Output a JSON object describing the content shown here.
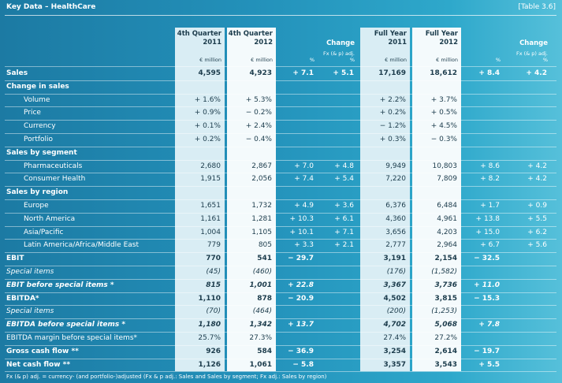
{
  "header": {
    "title": "Key Data – HealthCare",
    "table_ref": "[Table 3.6]"
  },
  "table": {
    "columns": [
      [
        "4th Quarter",
        "2011"
      ],
      [
        "4th Quarter",
        "2012"
      ],
      [
        "Change"
      ],
      [
        "Full Year",
        "2011"
      ],
      [
        "Full Year",
        "2012"
      ],
      [
        "Change"
      ]
    ],
    "units": [
      [
        "€ million"
      ],
      [
        "€ million"
      ],
      [
        "%"
      ],
      [
        "Fx (& p) adj.",
        "%"
      ],
      [
        "€ million"
      ],
      [
        "€ million"
      ],
      [
        "%"
      ],
      [
        "Fx (& p) adj.",
        "%"
      ]
    ],
    "rows": [
      {
        "label": "Sales",
        "cells": [
          "4,595",
          "4,923",
          "+ 7.1",
          "+ 5.1",
          "17,169",
          "18,612",
          "+ 8.4",
          "+ 4.2"
        ]
      },
      {
        "label": "Change in sales"
      },
      {
        "label": "Volume",
        "cells": [
          "+ 1.6%",
          "+ 5.3%",
          null,
          null,
          "+ 2.2%",
          "+ 3.7%",
          null,
          null
        ]
      },
      {
        "label": "Price",
        "cells": [
          "+ 0.9%",
          "− 0.2%",
          null,
          null,
          "+ 0.2%",
          "+ 0.5%",
          null,
          null
        ]
      },
      {
        "label": "Currency",
        "cells": [
          "+ 0.1%",
          "+ 2.4%",
          null,
          null,
          "− 1.2%",
          "+ 4.5%",
          null,
          null
        ]
      },
      {
        "label": "Portfolio",
        "cells": [
          "+ 0.2%",
          "− 0.4%",
          null,
          null,
          "+ 0.3%",
          "− 0.3%",
          null,
          null
        ]
      },
      {
        "label": "Sales by segment"
      },
      {
        "label": "Pharmaceuticals",
        "cells": [
          "2,680",
          "2,867",
          "+ 7.0",
          "+ 4.8",
          "9,949",
          "10,803",
          "+ 8.6",
          "+ 4.2"
        ]
      },
      {
        "label": "Consumer Health",
        "cells": [
          "1,915",
          "2,056",
          "+ 7.4",
          "+ 5.4",
          "7,220",
          "7,809",
          "+ 8.2",
          "+ 4.2"
        ]
      },
      {
        "label": "Sales by region"
      },
      {
        "label": "Europe",
        "cells": [
          "1,651",
          "1,732",
          "+ 4.9",
          "+ 3.6",
          "6,376",
          "6,484",
          "+ 1.7",
          "+ 0.9"
        ]
      },
      {
        "label": "North America",
        "cells": [
          "1,161",
          "1,281",
          "+ 10.3",
          "+ 6.1",
          "4,360",
          "4,961",
          "+ 13.8",
          "+ 5.5"
        ]
      },
      {
        "label": "Asia/Pacific",
        "cells": [
          "1,004",
          "1,105",
          "+ 10.1",
          "+ 7.1",
          "3,656",
          "4,203",
          "+ 15.0",
          "+ 6.2"
        ]
      },
      {
        "label": "Latin America/Africa/Middle East",
        "cells": [
          "779",
          "805",
          "+ 3.3",
          "+ 2.1",
          "2,777",
          "2,964",
          "+ 6.7",
          "+ 5.6"
        ]
      },
      {
        "label": "EBIT",
        "cells": [
          "770",
          "541",
          "− 29.7",
          null,
          "3,191",
          "2,154",
          "− 32.5",
          null
        ]
      },
      {
        "label": "Special items",
        "cells": [
          "(45)",
          "(460)",
          null,
          null,
          "(176)",
          "(1,582)",
          null,
          null
        ]
      },
      {
        "label": "EBIT before special items *",
        "cells": [
          "815",
          "1,001",
          "+ 22.8",
          null,
          "3,367",
          "3,736",
          "+ 11.0",
          null
        ]
      },
      {
        "label": "EBITDA*",
        "cells": [
          "1,110",
          "878",
          "− 20.9",
          null,
          "4,502",
          "3,815",
          "− 15.3",
          null
        ]
      },
      {
        "label": "Special items",
        "cells": [
          "(70)",
          "(464)",
          null,
          null,
          "(200)",
          "(1,253)",
          null,
          null
        ]
      },
      {
        "label": "EBITDA before special items *",
        "cells": [
          "1,180",
          "1,342",
          "+ 13.7",
          null,
          "4,702",
          "5,068",
          "+ 7.8",
          null
        ]
      },
      {
        "label": "EBITDA margin before special items*",
        "cells": [
          "25.7%",
          "27.3%",
          null,
          null,
          "27.4%",
          "27.2%",
          null,
          null
        ]
      },
      {
        "label": "Gross cash flow **",
        "cells": [
          "926",
          "584",
          "− 36.9",
          null,
          "3,254",
          "2,614",
          "− 19.7",
          null
        ]
      },
      {
        "label": "Net cash flow **",
        "cells": [
          "1,126",
          "1,061",
          "− 5.8",
          null,
          "3,357",
          "3,543",
          "+ 5.5",
          null
        ]
      }
    ]
  },
  "footnote": "Fx (& p) adj. = currency- (and portfolio-)adjusted (Fx & p adj.: Sales and Sales by segment; Fx adj.: Sales by region)"
}
